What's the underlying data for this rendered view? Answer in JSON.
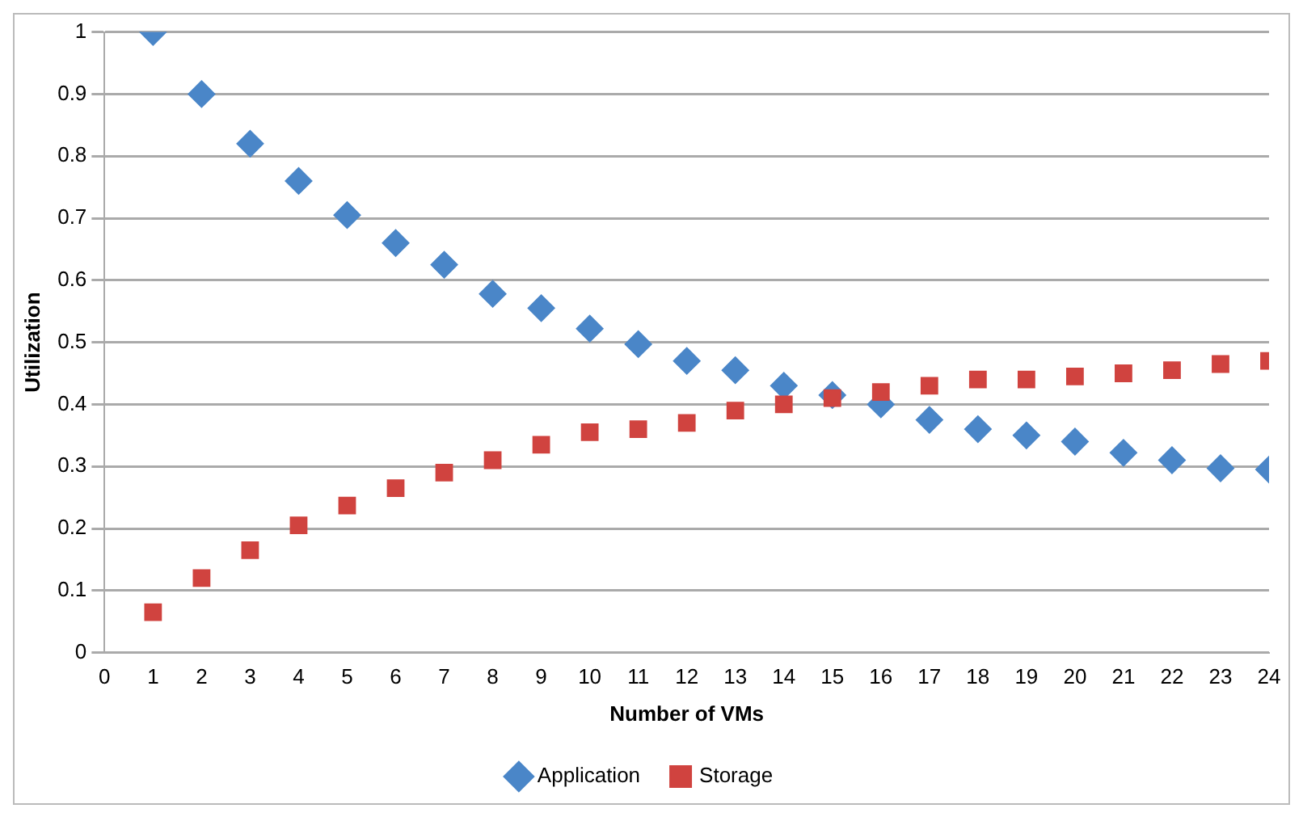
{
  "chart_data": {
    "type": "scatter",
    "xlabel": "Number of VMs",
    "ylabel": "Utilization",
    "x": [
      1,
      2,
      3,
      4,
      5,
      6,
      7,
      8,
      9,
      10,
      11,
      12,
      13,
      14,
      15,
      16,
      17,
      18,
      19,
      20,
      21,
      22,
      23,
      24
    ],
    "series": [
      {
        "name": "Application",
        "color": "#4a86c8",
        "marker": "diamond",
        "values": [
          1.0,
          0.9,
          0.82,
          0.76,
          0.705,
          0.66,
          0.625,
          0.578,
          0.555,
          0.522,
          0.497,
          0.47,
          0.455,
          0.43,
          0.415,
          0.4,
          0.375,
          0.36,
          0.35,
          0.34,
          0.322,
          0.31,
          0.297,
          0.295
        ]
      },
      {
        "name": "Storage",
        "color": "#d0433f",
        "marker": "square",
        "values": [
          0.065,
          0.12,
          0.165,
          0.205,
          0.237,
          0.265,
          0.29,
          0.31,
          0.335,
          0.355,
          0.36,
          0.37,
          0.39,
          0.4,
          0.41,
          0.42,
          0.43,
          0.44,
          0.44,
          0.445,
          0.45,
          0.455,
          0.465,
          0.47
        ]
      }
    ],
    "xlim": [
      0,
      24
    ],
    "xticks": [
      0,
      1,
      2,
      3,
      4,
      5,
      6,
      7,
      8,
      9,
      10,
      11,
      12,
      13,
      14,
      15,
      16,
      17,
      18,
      19,
      20,
      21,
      22,
      23,
      24
    ],
    "ylim": [
      0,
      1
    ],
    "yticks": [
      0,
      0.1,
      0.2,
      0.3,
      0.4,
      0.5,
      0.6,
      0.7,
      0.8,
      0.9,
      1
    ],
    "grid": "y",
    "legend": "bottom"
  }
}
